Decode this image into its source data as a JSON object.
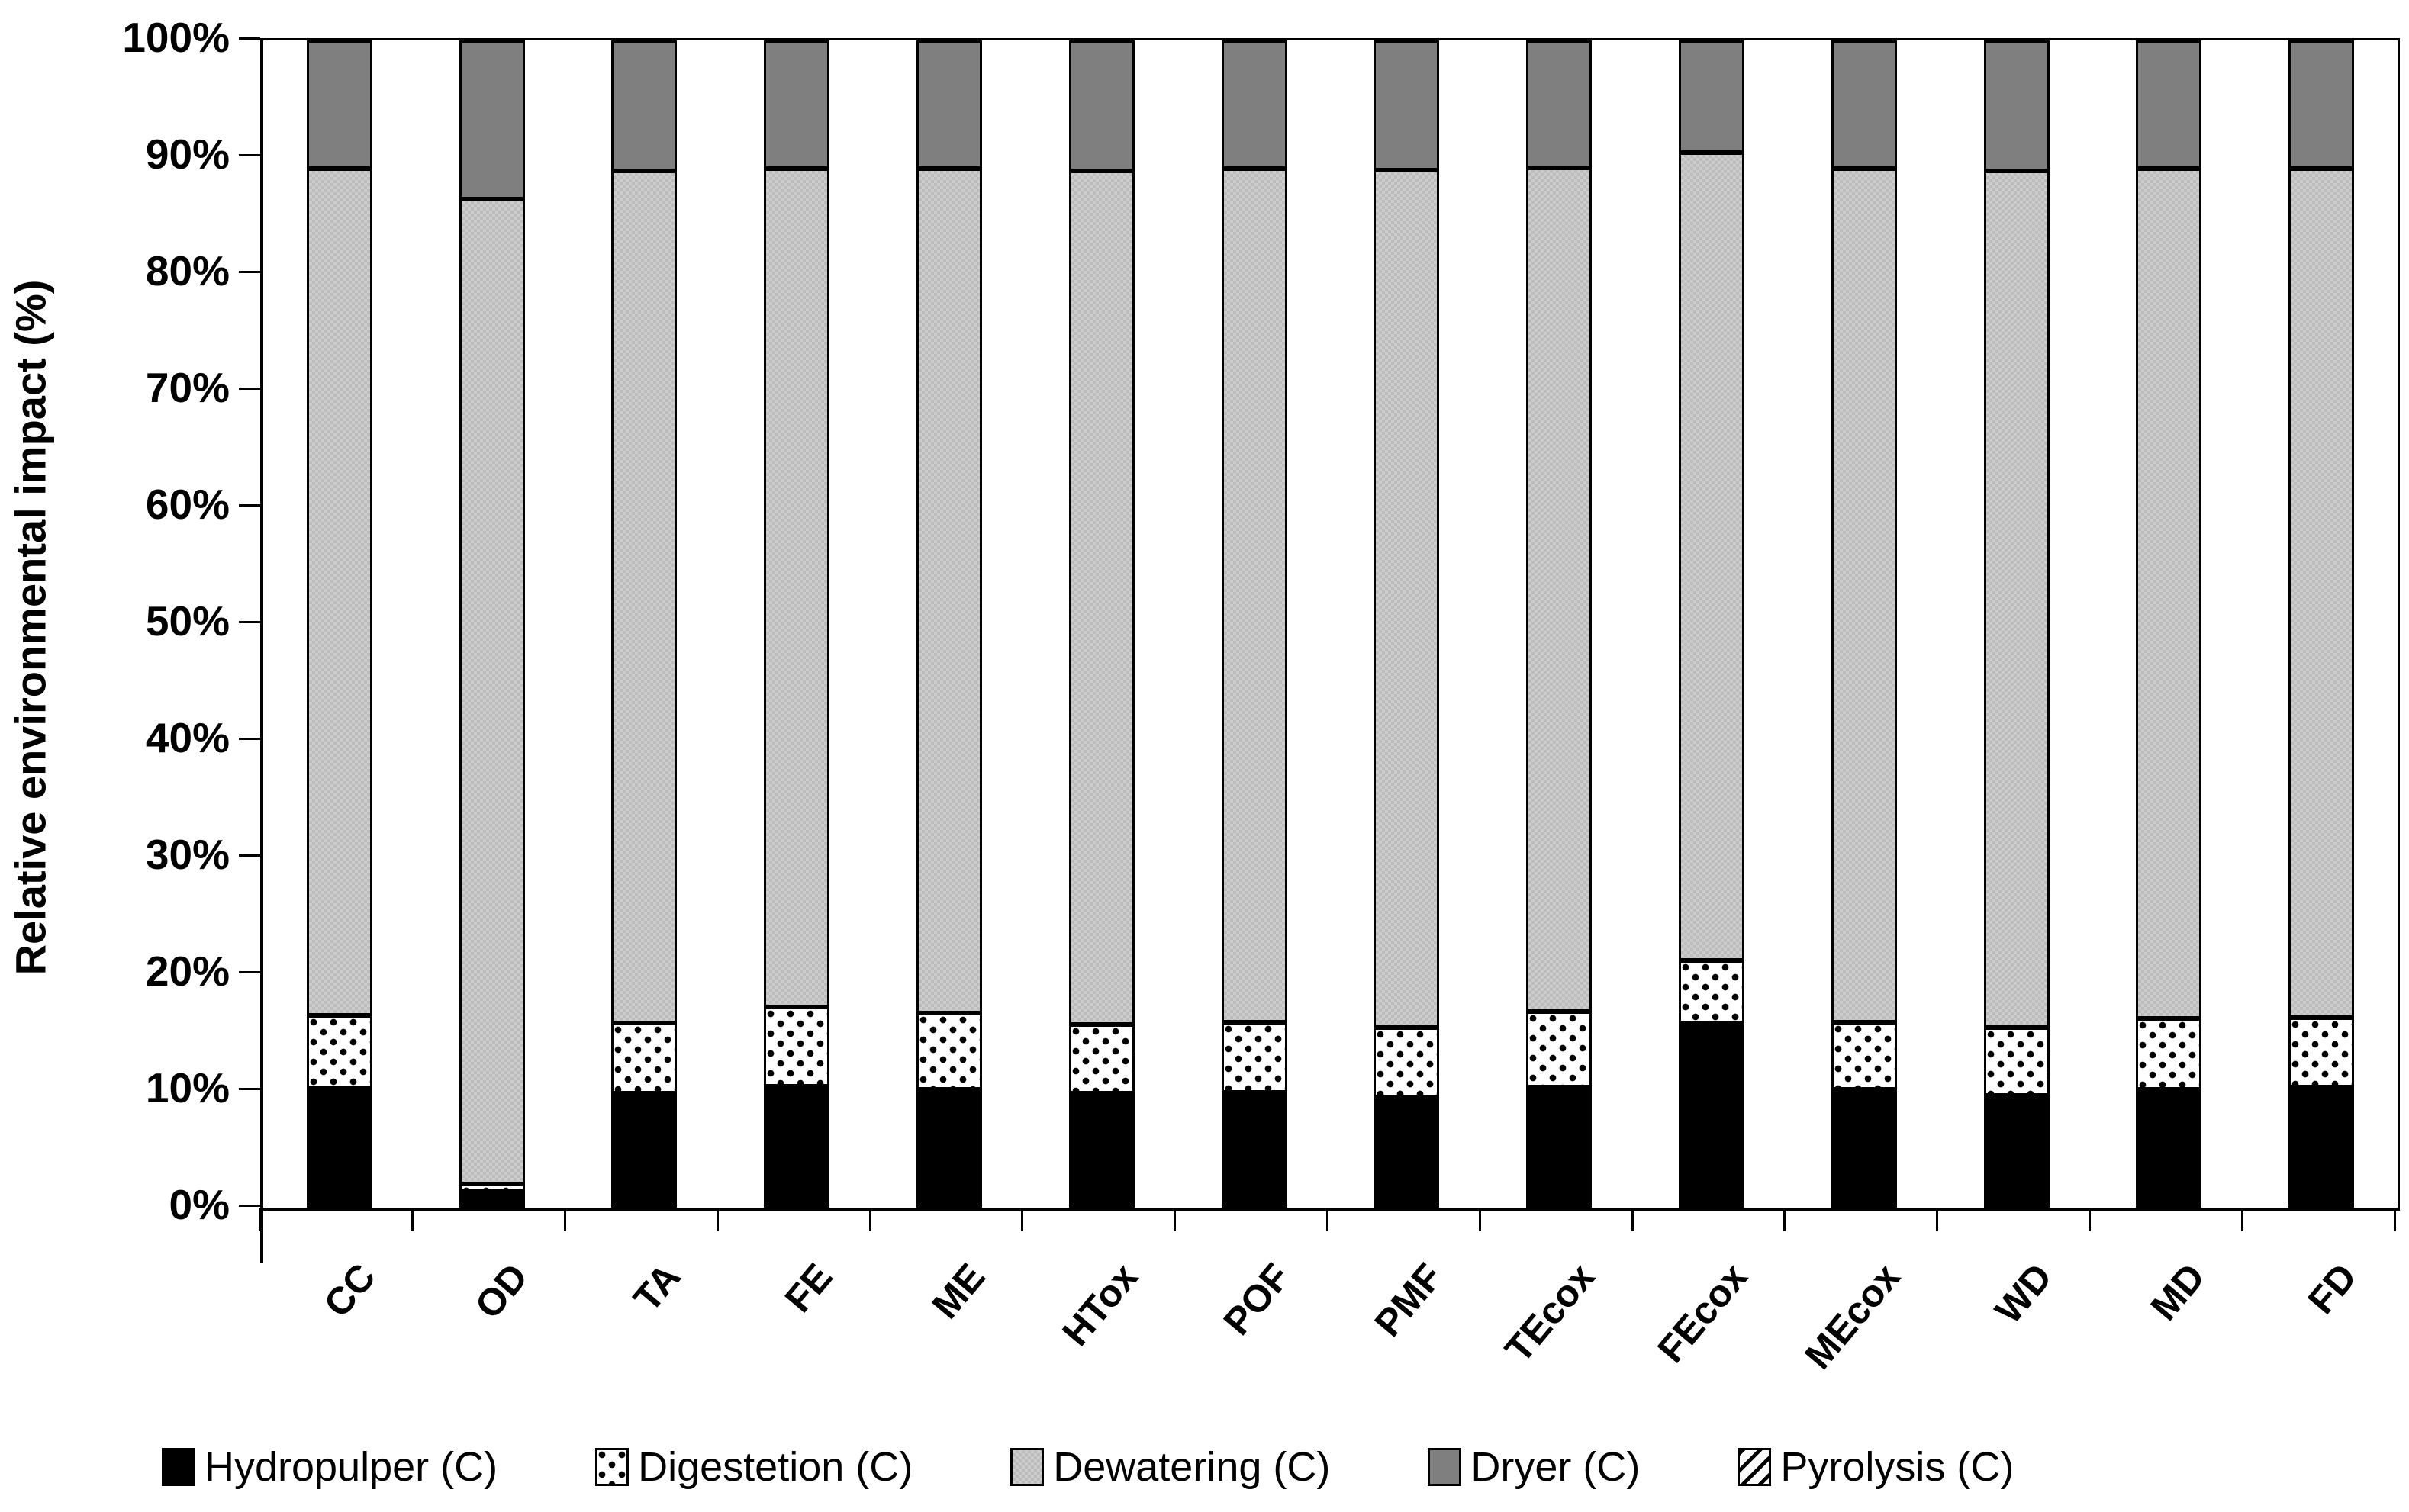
{
  "chart_data": {
    "type": "bar",
    "stacked": true,
    "stack_mode": "percent",
    "title": "",
    "xlabel": "",
    "ylabel": "Relative environmental impact (%)",
    "ylim": [
      0,
      100
    ],
    "ytick_labels": [
      "0%",
      "10%",
      "20%",
      "30%",
      "40%",
      "50%",
      "60%",
      "70%",
      "80%",
      "90%",
      "100%"
    ],
    "grid": false,
    "legend_position": "bottom",
    "categories": [
      "CC",
      "OD",
      "TA",
      "FE",
      "ME",
      "HTox",
      "POF",
      "PMF",
      "TEcox",
      "FEcox",
      "MEcox",
      "WD",
      "MD",
      "FD"
    ],
    "series": [
      {
        "name": "Hydropulper (C)",
        "pattern": "solid-black",
        "color": "#000000",
        "values": [
          10.2,
          1.4,
          9.8,
          10.4,
          10.1,
          9.8,
          9.9,
          9.5,
          10.3,
          15.8,
          10.1,
          9.6,
          10.1,
          10.3
        ]
      },
      {
        "name": "Digestetion (C)",
        "pattern": "dots",
        "color": "#ffffff",
        "values": [
          6.3,
          0.6,
          6.0,
          6.8,
          6.6,
          5.9,
          6.0,
          5.9,
          6.5,
          5.4,
          5.8,
          5.8,
          6.1,
          6.0
        ]
      },
      {
        "name": "Dewatering (C)",
        "pattern": "fine-checker",
        "color": "#c8c8c8",
        "values": [
          72.5,
          84.4,
          73.0,
          71.8,
          72.3,
          73.1,
          73.1,
          73.5,
          72.3,
          69.2,
          73.1,
          73.4,
          72.8,
          72.7
        ]
      },
      {
        "name": "Dryer (C)",
        "pattern": "solid-gray",
        "color": "#7f7f7f",
        "values": [
          11.0,
          13.6,
          11.2,
          11.0,
          11.0,
          11.2,
          11.0,
          11.1,
          10.9,
          9.6,
          11.0,
          11.2,
          11.0,
          11.0
        ]
      },
      {
        "name": "Pyrolysis (C)",
        "pattern": "diagonal-hatch",
        "color": "#ffffff",
        "values": [
          0,
          0,
          0,
          0,
          0,
          0,
          0,
          0,
          0,
          0,
          0,
          0,
          0,
          0
        ]
      }
    ]
  }
}
